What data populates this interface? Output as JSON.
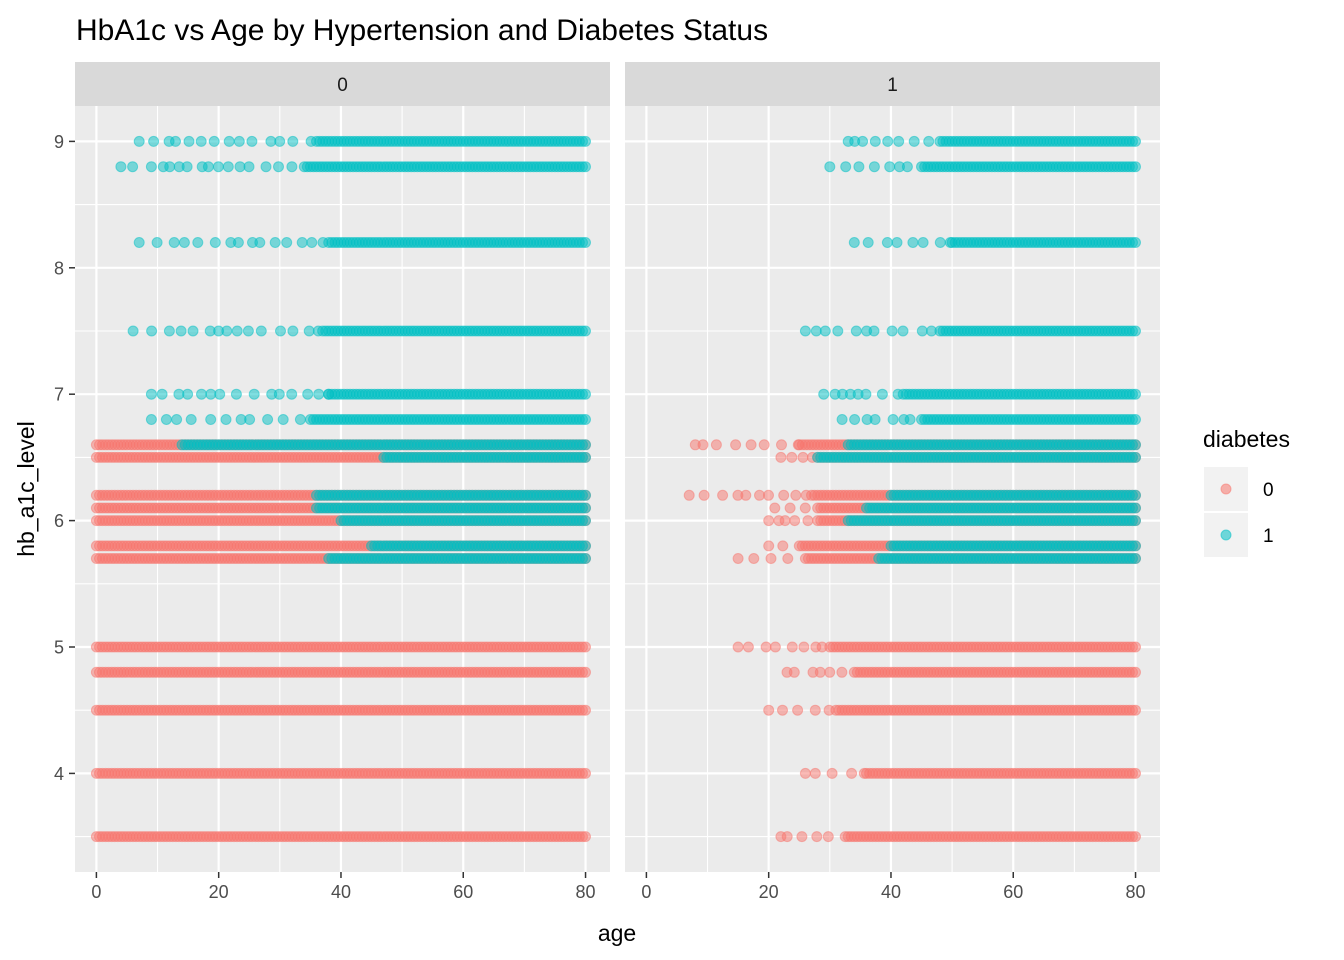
{
  "chart_data": {
    "type": "scatter",
    "title": "HbA1c vs Age by Hypertension and Diabetes Status",
    "xlabel": "age",
    "ylabel": "hb_a1c_level",
    "xlim": [
      -3.5,
      84
    ],
    "ylim": [
      3.22,
      9.28
    ],
    "x_ticks": [
      "0",
      "20",
      "40",
      "60",
      "80"
    ],
    "y_ticks": [
      "4",
      "5",
      "6",
      "7",
      "8",
      "9"
    ],
    "grid": true,
    "facet_var": "hypertension",
    "legend": {
      "title": "diabetes",
      "position": "right",
      "entries": [
        {
          "label": "0",
          "color": "#F8766D"
        },
        {
          "label": "1",
          "color": "#00BFC4"
        }
      ]
    },
    "panels": [
      {
        "label": "0",
        "series": [
          {
            "name": "0",
            "color": "#F8766D",
            "bands": [
              {
                "y": 3.5,
                "x": [
                  0,
                  80
                ]
              },
              {
                "y": 4.0,
                "x": [
                  0,
                  80
                ]
              },
              {
                "y": 4.5,
                "x": [
                  0,
                  80
                ]
              },
              {
                "y": 4.8,
                "x": [
                  0,
                  80
                ]
              },
              {
                "y": 5.0,
                "x": [
                  0,
                  80
                ]
              },
              {
                "y": 5.7,
                "x": [
                  0,
                  80
                ]
              },
              {
                "y": 5.8,
                "x": [
                  0,
                  80
                ]
              },
              {
                "y": 6.0,
                "x": [
                  0,
                  80
                ]
              },
              {
                "y": 6.1,
                "x": [
                  0,
                  80
                ]
              },
              {
                "y": 6.2,
                "x": [
                  0,
                  80
                ]
              },
              {
                "y": 6.5,
                "x": [
                  0,
                  80
                ]
              },
              {
                "y": 6.6,
                "x": [
                  0,
                  80
                ]
              }
            ]
          },
          {
            "name": "1",
            "color": "#00BFC4",
            "bands": [
              {
                "y": 5.7,
                "x": [
                  38,
                  80
                ]
              },
              {
                "y": 5.8,
                "x": [
                  45,
                  80
                ]
              },
              {
                "y": 6.0,
                "x": [
                  40,
                  80
                ]
              },
              {
                "y": 6.1,
                "x": [
                  36,
                  80
                ]
              },
              {
                "y": 6.2,
                "x": [
                  36,
                  80
                ]
              },
              {
                "y": 6.5,
                "x": [
                  47,
                  80
                ]
              },
              {
                "y": 6.6,
                "x": [
                  14,
                  80
                ]
              },
              {
                "y": 6.8,
                "x": [
                  9,
                  80
                ],
                "dense_from": 35
              },
              {
                "y": 7.0,
                "x": [
                  9,
                  80
                ],
                "dense_from": 38
              },
              {
                "y": 7.5,
                "x": [
                  6,
                  80
                ],
                "dense_from": 37
              },
              {
                "y": 8.2,
                "x": [
                  7,
                  80
                ],
                "dense_from": 38
              },
              {
                "y": 8.8,
                "x": [
                  4,
                  80
                ],
                "dense_from": 34
              },
              {
                "y": 9.0,
                "x": [
                  7,
                  80
                ],
                "dense_from": 36
              }
            ]
          }
        ]
      },
      {
        "label": "1",
        "series": [
          {
            "name": "0",
            "color": "#F8766D",
            "bands": [
              {
                "y": 3.5,
                "x": [
                  22,
                  80
                ],
                "dense_from": 33
              },
              {
                "y": 4.0,
                "x": [
                  26,
                  80
                ],
                "dense_from": 36
              },
              {
                "y": 4.5,
                "x": [
                  20,
                  80
                ],
                "dense_from": 31
              },
              {
                "y": 4.8,
                "x": [
                  23,
                  80
                ],
                "dense_from": 34
              },
              {
                "y": 5.0,
                "x": [
                  15,
                  80
                ],
                "dense_from": 30
              },
              {
                "y": 5.7,
                "x": [
                  15,
                  80
                ],
                "dense_from": 26
              },
              {
                "y": 5.8,
                "x": [
                  20,
                  80
                ],
                "dense_from": 25
              },
              {
                "y": 6.0,
                "x": [
                  20,
                  80
                ],
                "dense_from": 28
              },
              {
                "y": 6.1,
                "x": [
                  21,
                  80
                ],
                "dense_from": 28
              },
              {
                "y": 6.2,
                "x": [
                  7,
                  80
                ],
                "dense_from": 27
              },
              {
                "y": 6.5,
                "x": [
                  22,
                  80
                ],
                "dense_from": 28
              },
              {
                "y": 6.6,
                "x": [
                  8,
                  80
                ],
                "dense_from": 25
              }
            ]
          },
          {
            "name": "1",
            "color": "#00BFC4",
            "bands": [
              {
                "y": 5.7,
                "x": [
                  38,
                  80
                ]
              },
              {
                "y": 5.8,
                "x": [
                  40,
                  80
                ]
              },
              {
                "y": 6.0,
                "x": [
                  33,
                  80
                ]
              },
              {
                "y": 6.1,
                "x": [
                  36,
                  80
                ]
              },
              {
                "y": 6.2,
                "x": [
                  40,
                  80
                ]
              },
              {
                "y": 6.5,
                "x": [
                  28,
                  80
                ]
              },
              {
                "y": 6.6,
                "x": [
                  33,
                  80
                ]
              },
              {
                "y": 6.8,
                "x": [
                  32,
                  80
                ],
                "dense_from": 45
              },
              {
                "y": 7.0,
                "x": [
                  29,
                  80
                ],
                "dense_from": 42
              },
              {
                "y": 7.5,
                "x": [
                  26,
                  80
                ],
                "dense_from": 48
              },
              {
                "y": 8.2,
                "x": [
                  34,
                  80
                ],
                "dense_from": 50
              },
              {
                "y": 8.8,
                "x": [
                  30,
                  80
                ],
                "dense_from": 45
              },
              {
                "y": 9.0,
                "x": [
                  33,
                  80
                ],
                "dense_from": 48
              }
            ]
          }
        ]
      }
    ]
  }
}
